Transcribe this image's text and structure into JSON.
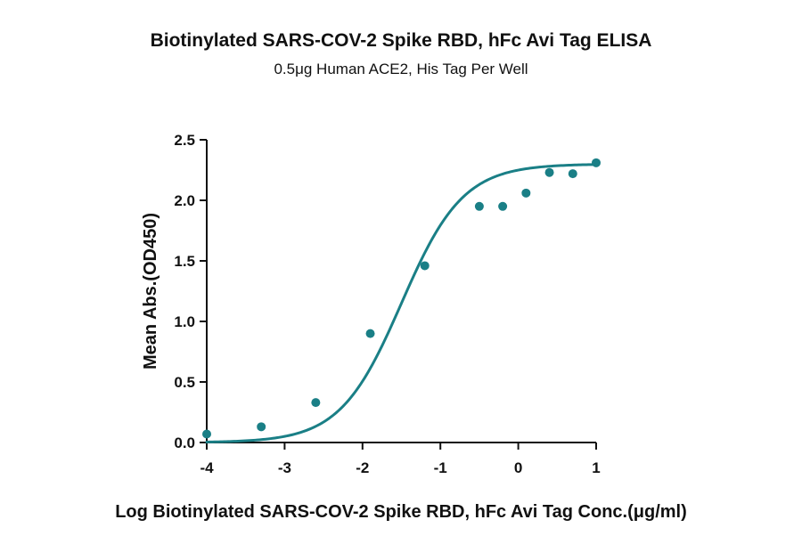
{
  "chart_data": {
    "type": "scatter",
    "title": "Biotinylated SARS-COV-2 Spike RBD, hFc Avi Tag ELISA",
    "subtitle": "0.5μg Human ACE2, His Tag Per Well",
    "xlabel": "Log Biotinylated SARS-COV-2 Spike RBD, hFc Avi Tag Conc.(μg/ml)",
    "ylabel": "Mean Abs.(OD450)",
    "xlim": [
      -4,
      1
    ],
    "ylim": [
      0,
      2.5
    ],
    "x_ticks": [
      "-4",
      "-3",
      "-2",
      "-1",
      "0",
      "1"
    ],
    "y_ticks": [
      "0.0",
      "0.5",
      "1.0",
      "1.5",
      "2.0",
      "2.5"
    ],
    "grid": false,
    "legend": "none",
    "series": [
      {
        "color": "#1a7f86",
        "points": [
          {
            "x": -4.0,
            "y": 0.07
          },
          {
            "x": -3.3,
            "y": 0.13
          },
          {
            "x": -2.6,
            "y": 0.33
          },
          {
            "x": -1.9,
            "y": 0.9
          },
          {
            "x": -1.2,
            "y": 1.46
          },
          {
            "x": -0.5,
            "y": 1.95
          },
          {
            "x": -0.2,
            "y": 1.95
          },
          {
            "x": 0.1,
            "y": 2.06
          },
          {
            "x": 0.4,
            "y": 2.23
          },
          {
            "x": 0.7,
            "y": 2.22
          },
          {
            "x": 1.0,
            "y": 2.31
          }
        ],
        "fit_curve": {
          "model": "4PL",
          "bottom": 0.0,
          "top": 2.3,
          "log_ec50": -1.5,
          "hill_slope": 1.1
        }
      }
    ]
  }
}
